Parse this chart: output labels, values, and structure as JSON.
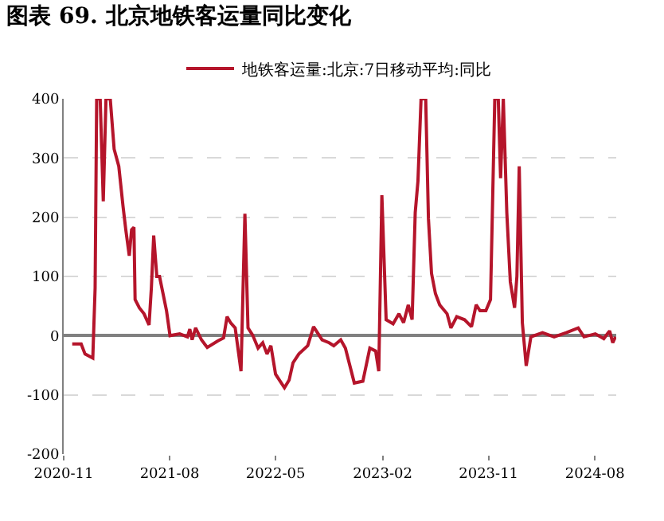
{
  "chart_data": {
    "type": "line",
    "title": "图表 69. 北京地铁客运量同比变化",
    "x": [
      "2020-11-23",
      "2020-12-16",
      "2020-12-26",
      "2021-01-15",
      "2021-01-21",
      "2021-01-25",
      "2021-02-03",
      "2021-02-11",
      "2021-02-18",
      "2021-03-01",
      "2021-03-11",
      "2021-03-23",
      "2021-04-03",
      "2021-04-10",
      "2021-04-19",
      "2021-04-25",
      "2021-05-01",
      "2021-05-04",
      "2021-05-15",
      "2021-05-27",
      "2021-06-09",
      "2021-06-15",
      "2021-06-21",
      "2021-06-29",
      "2021-07-06",
      "2021-07-24",
      "2021-08-02",
      "2021-08-27",
      "2021-09-16",
      "2021-09-22",
      "2021-09-28",
      "2021-10-07",
      "2021-10-22",
      "2021-11-06",
      "2021-12-03",
      "2021-12-18",
      "2021-12-27",
      "2022-01-05",
      "2022-01-17",
      "2022-02-01",
      "2022-02-11",
      "2022-02-19",
      "2022-03-03",
      "2022-03-17",
      "2022-03-29",
      "2022-04-09",
      "2022-04-19",
      "2022-05-01",
      "2022-05-24",
      "2022-06-05",
      "2022-06-15",
      "2022-06-30",
      "2022-07-23",
      "2022-08-07",
      "2022-08-29",
      "2022-09-16",
      "2022-09-28",
      "2022-10-16",
      "2022-10-28",
      "2022-11-20",
      "2022-12-12",
      "2022-12-30",
      "2023-01-14",
      "2023-01-22",
      "2023-01-30",
      "2023-02-10",
      "2023-02-28",
      "2023-03-15",
      "2023-03-27",
      "2023-04-08",
      "2023-04-18",
      "2023-04-26",
      "2023-05-03",
      "2023-05-11",
      "2023-05-23",
      "2023-05-30",
      "2023-06-07",
      "2023-06-17",
      "2023-06-28",
      "2023-07-17",
      "2023-07-27",
      "2023-08-11",
      "2023-08-31",
      "2023-09-18",
      "2023-09-30",
      "2023-10-10",
      "2023-10-25",
      "2023-11-06",
      "2023-11-17",
      "2023-11-26",
      "2023-12-02",
      "2023-12-09",
      "2023-12-18",
      "2023-12-27",
      "2024-01-07",
      "2024-01-13",
      "2024-01-19",
      "2024-01-27",
      "2024-02-06",
      "2024-02-18",
      "2024-03-19",
      "2024-04-18",
      "2024-05-19",
      "2024-06-19",
      "2024-07-04",
      "2024-08-02",
      "2024-08-24",
      "2024-09-08",
      "2024-09-16",
      "2024-09-23"
    ],
    "series": [
      {
        "name": "地铁客运量:北京:7日移动平均:同比",
        "color": "#b5152b",
        "values": [
          -14,
          -14,
          -31,
          -38,
          81,
          400,
          400,
          227,
          400,
          400,
          315,
          286,
          218,
          179,
          135,
          179,
          183,
          61,
          47,
          37,
          18,
          81,
          169,
          100,
          100,
          42,
          0,
          3,
          -2,
          11,
          -7,
          13,
          -7,
          -20,
          -9,
          -4,
          32,
          22,
          13,
          -60,
          206,
          13,
          1,
          -21,
          -12,
          -31,
          -17,
          -65,
          -88,
          -75,
          -46,
          -31,
          -17,
          15,
          -7,
          -12,
          -17,
          -7,
          -21,
          -80,
          -77,
          -21,
          -26,
          -60,
          237,
          27,
          20,
          37,
          22,
          52,
          27,
          208,
          261,
          400,
          400,
          198,
          105,
          71,
          52,
          37,
          13,
          32,
          27,
          15,
          52,
          42,
          42,
          61,
          400,
          400,
          266,
          400,
          208,
          91,
          47,
          100,
          286,
          22,
          -51,
          -2,
          5,
          -2,
          5,
          13,
          -2,
          3,
          -5,
          8,
          -12,
          -2
        ]
      }
    ],
    "xlim": [
      "2020-11-01",
      "2024-09-25"
    ],
    "xticks": [
      "2020-11",
      "2021-08",
      "2022-05",
      "2023-02",
      "2023-11",
      "2024-08"
    ],
    "ylim": [
      -200,
      400
    ],
    "yticks": [
      -200,
      -100,
      0,
      100,
      200,
      300,
      400
    ],
    "grid": "y",
    "legend": "top",
    "marker": "none",
    "line_style": "solid"
  }
}
